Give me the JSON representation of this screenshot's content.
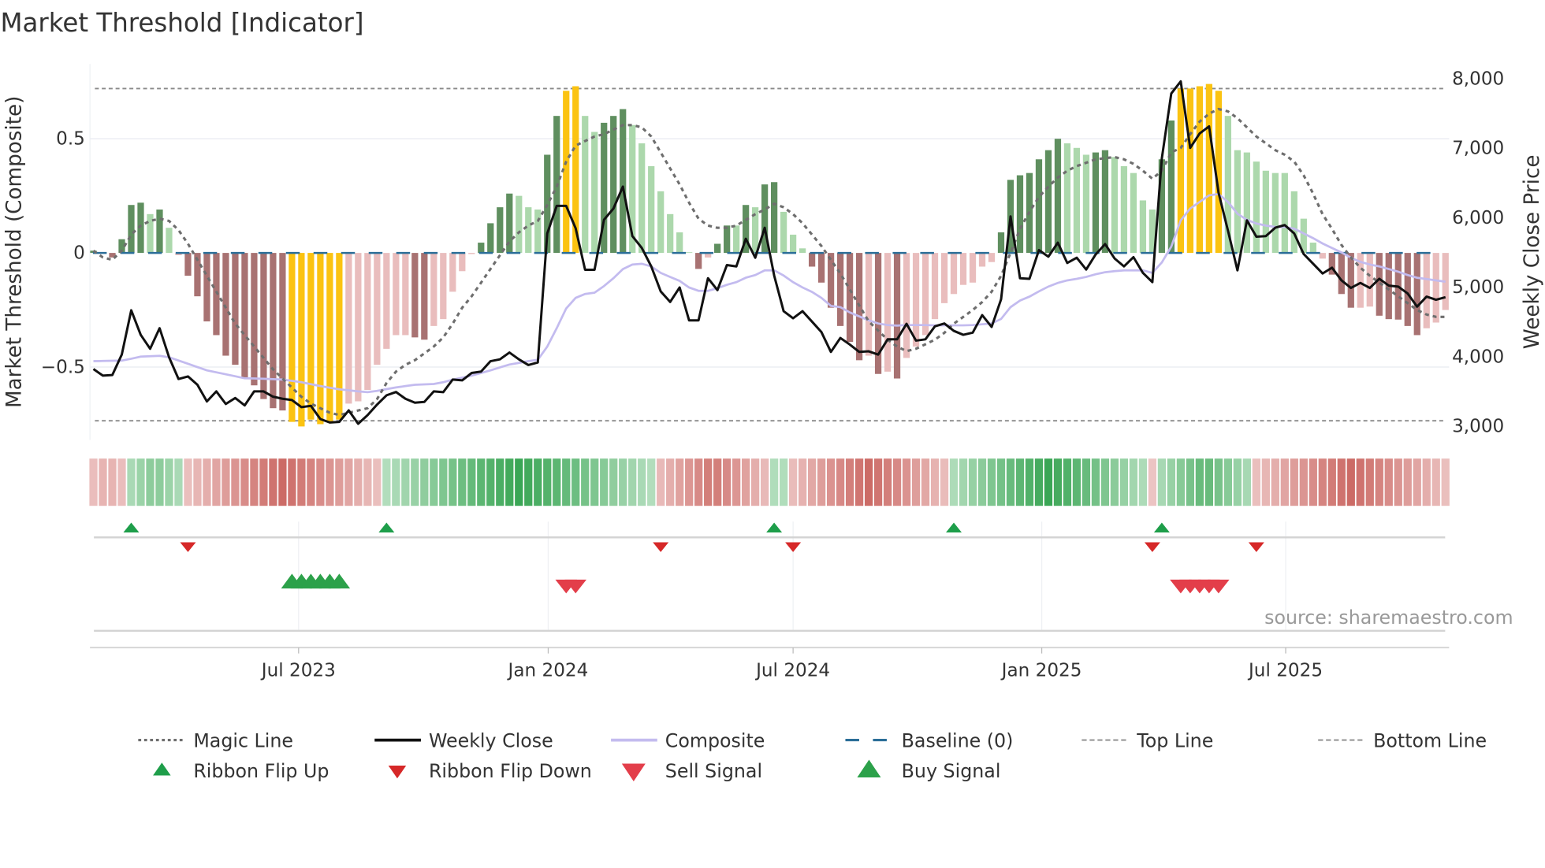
{
  "title": "Market Threshold [Indicator]",
  "source_text": "source: sharemaestro.com",
  "colors": {
    "bar_dark_green": "#5f8f5f",
    "bar_light_green": "#acd8ac",
    "bar_dark_red": "#a87272",
    "bar_light_red": "#e9bdbd",
    "bar_gold": "#fbc311",
    "close": "#111111",
    "composite": "#c3bbef",
    "magic": "#6e6e6e",
    "baseline": "#2b6e98",
    "threshold_lines": "#8a8a8a",
    "ribbon_green": "#3aa655",
    "ribbon_red": "#cc6b66",
    "flip_up": "#1e9e4a",
    "flip_down": "#d62828",
    "buy": "#2ca14a",
    "sell": "#e33e4a"
  },
  "chart_data": {
    "type": "bar",
    "title": "Market Threshold [Indicator]",
    "ylabel_left": "Market Threshold (Composite)",
    "ylabel_right": "Weekly Close Price",
    "ylim_left": [
      -0.78,
      0.78
    ],
    "ylim_right": [
      3000,
      8000
    ],
    "left_ticks": [
      {
        "value": 0.5,
        "label": "0.5"
      },
      {
        "value": 0,
        "label": "0"
      },
      {
        "value": -0.5,
        "label": "−0.5"
      }
    ],
    "right_ticks": [
      {
        "value": 8000,
        "label": "8,000"
      },
      {
        "value": 7000,
        "label": "7,000"
      },
      {
        "value": 6000,
        "label": "6,000"
      },
      {
        "value": 5000,
        "label": "5,000"
      },
      {
        "value": 4000,
        "label": "4,000"
      },
      {
        "value": 3000,
        "label": "3,000"
      }
    ],
    "x_ticks": [
      {
        "week": 21.7,
        "label": "Jul 2023"
      },
      {
        "week": 48.1,
        "label": "Jan 2024"
      },
      {
        "week": 74.0,
        "label": "Jul 2024"
      },
      {
        "week": 100.3,
        "label": "Jan 2025"
      },
      {
        "week": 126.1,
        "label": "Jul 2025"
      }
    ],
    "top_line": 0.72,
    "bottom_line": -0.735,
    "gold_threshold": 0.7,
    "threshold_bars": [
      0.01,
      0.0,
      -0.02,
      0.06,
      0.21,
      0.22,
      0.17,
      0.19,
      0.11,
      -0.01,
      -0.1,
      -0.19,
      -0.3,
      -0.36,
      -0.45,
      -0.49,
      -0.55,
      -0.58,
      -0.64,
      -0.68,
      -0.69,
      -0.74,
      -0.76,
      -0.73,
      -0.75,
      -0.74,
      -0.73,
      -0.66,
      -0.65,
      -0.6,
      -0.49,
      -0.42,
      -0.36,
      -0.36,
      -0.37,
      -0.38,
      -0.32,
      -0.29,
      -0.17,
      -0.08,
      -0.005,
      0.045,
      0.13,
      0.2,
      0.26,
      0.25,
      0.2,
      0.19,
      0.43,
      0.6,
      0.71,
      0.73,
      0.6,
      0.53,
      0.57,
      0.6,
      0.63,
      0.56,
      0.48,
      0.38,
      0.27,
      0.17,
      0.09,
      0.003,
      -0.07,
      -0.02,
      0.04,
      0.12,
      0.12,
      0.21,
      0.2,
      0.3,
      0.31,
      0.18,
      0.08,
      0.02,
      -0.06,
      -0.13,
      -0.24,
      -0.32,
      -0.39,
      -0.47,
      -0.45,
      -0.53,
      -0.52,
      -0.55,
      -0.46,
      -0.41,
      -0.36,
      -0.29,
      -0.22,
      -0.18,
      -0.14,
      -0.13,
      -0.06,
      -0.04,
      0.09,
      0.32,
      0.34,
      0.35,
      0.41,
      0.45,
      0.5,
      0.48,
      0.46,
      0.43,
      0.44,
      0.45,
      0.42,
      0.38,
      0.35,
      0.23,
      0.19,
      0.41,
      0.58,
      0.72,
      0.72,
      0.73,
      0.74,
      0.71,
      0.6,
      0.45,
      0.44,
      0.4,
      0.36,
      0.35,
      0.35,
      0.27,
      0.15,
      0.045,
      -0.025,
      -0.095,
      -0.18,
      -0.24,
      -0.24,
      -0.235,
      -0.275,
      -0.29,
      -0.292,
      -0.32,
      -0.36,
      -0.33,
      -0.305,
      -0.25
    ],
    "magic_line": [
      0.01,
      -0.02,
      -0.03,
      0.01,
      0.08,
      0.12,
      0.14,
      0.15,
      0.14,
      0.1,
      0.04,
      -0.03,
      -0.1,
      -0.17,
      -0.24,
      -0.31,
      -0.36,
      -0.41,
      -0.46,
      -0.51,
      -0.55,
      -0.59,
      -0.63,
      -0.66,
      -0.68,
      -0.7,
      -0.71,
      -0.7,
      -0.69,
      -0.68,
      -0.64,
      -0.57,
      -0.52,
      -0.49,
      -0.47,
      -0.44,
      -0.41,
      -0.37,
      -0.31,
      -0.24,
      -0.19,
      -0.13,
      -0.07,
      -0.01,
      0.05,
      0.09,
      0.12,
      0.14,
      0.21,
      0.29,
      0.4,
      0.47,
      0.49,
      0.51,
      0.52,
      0.54,
      0.56,
      0.56,
      0.55,
      0.51,
      0.44,
      0.37,
      0.3,
      0.22,
      0.15,
      0.12,
      0.11,
      0.11,
      0.12,
      0.145,
      0.17,
      0.19,
      0.215,
      0.2,
      0.17,
      0.13,
      0.08,
      0.03,
      -0.03,
      -0.09,
      -0.16,
      -0.23,
      -0.3,
      -0.34,
      -0.38,
      -0.41,
      -0.43,
      -0.42,
      -0.4,
      -0.38,
      -0.35,
      -0.31,
      -0.28,
      -0.25,
      -0.215,
      -0.17,
      -0.1,
      0.0,
      0.105,
      0.18,
      0.245,
      0.29,
      0.33,
      0.36,
      0.38,
      0.395,
      0.41,
      0.415,
      0.42,
      0.41,
      0.39,
      0.36,
      0.325,
      0.36,
      0.44,
      0.46,
      0.52,
      0.575,
      0.61,
      0.63,
      0.62,
      0.59,
      0.55,
      0.51,
      0.48,
      0.45,
      0.43,
      0.4,
      0.34,
      0.26,
      0.17,
      0.105,
      0.035,
      -0.02,
      -0.065,
      -0.1,
      -0.13,
      -0.16,
      -0.19,
      -0.22,
      -0.25,
      -0.27,
      -0.28,
      -0.28
    ],
    "weekly_close": [
      3822,
      3727,
      3735,
      4030,
      4667,
      4314,
      4114,
      4409,
      3992,
      3678,
      3716,
      3595,
      3356,
      3500,
      3318,
      3405,
      3299,
      3500,
      3500,
      3424,
      3394,
      3375,
      3273,
      3292,
      3102,
      3053,
      3061,
      3227,
      3034,
      3159,
      3310,
      3443,
      3492,
      3394,
      3337,
      3348,
      3500,
      3489,
      3670,
      3659,
      3765,
      3784,
      3935,
      3962,
      4060,
      3962,
      3879,
      3917,
      5773,
      6170,
      6170,
      5848,
      5250,
      5250,
      5970,
      6132,
      6447,
      5735,
      5564,
      5299,
      4939,
      4788,
      4996,
      4523,
      4523,
      5129,
      4958,
      5318,
      5299,
      5697,
      5424,
      5856,
      5167,
      4655,
      4553,
      4655,
      4504,
      4352,
      4068,
      4269,
      4174,
      4068,
      4076,
      4030,
      4250,
      4250,
      4473,
      4231,
      4250,
      4436,
      4477,
      4371,
      4314,
      4345,
      4598,
      4428,
      4826,
      6019,
      5129,
      5121,
      5534,
      5439,
      5640,
      5348,
      5424,
      5254,
      5470,
      5621,
      5413,
      5299,
      5432,
      5205,
      5072,
      6852,
      7788,
      7962,
      7004,
      7212,
      7314,
      6360,
      5811,
      5242,
      5962,
      5727,
      5735,
      5856,
      5894,
      5773,
      5477,
      5337,
      5197,
      5280,
      5098,
      4989,
      5061,
      4989,
      5121,
      5023,
      5008,
      4909,
      4720,
      4864,
      4818,
      4856
    ],
    "composite": [
      3935,
      3938,
      3940,
      3943,
      3970,
      4000,
      4005,
      4011,
      3992,
      3945,
      3898,
      3850,
      3803,
      3775,
      3746,
      3718,
      3689,
      3685,
      3682,
      3676,
      3670,
      3651,
      3632,
      3604,
      3576,
      3553,
      3530,
      3515,
      3500,
      3489,
      3507,
      3532,
      3557,
      3576,
      3595,
      3600,
      3606,
      3632,
      3670,
      3697,
      3727,
      3765,
      3803,
      3845,
      3886,
      3910,
      3935,
      3954,
      4144,
      4409,
      4693,
      4845,
      4902,
      4920,
      5015,
      5129,
      5261,
      5326,
      5337,
      5299,
      5205,
      5148,
      5091,
      4996,
      4947,
      4947,
      4985,
      5034,
      5072,
      5136,
      5174,
      5242,
      5242,
      5167,
      5072,
      4996,
      4932,
      4845,
      4731,
      4712,
      4636,
      4580,
      4523,
      4477,
      4455,
      4447,
      4455,
      4455,
      4455,
      4450,
      4450,
      4450,
      4450,
      4455,
      4466,
      4477,
      4542,
      4712,
      4807,
      4864,
      4939,
      5008,
      5061,
      5098,
      5121,
      5148,
      5186,
      5216,
      5231,
      5242,
      5242,
      5242,
      5205,
      5356,
      5583,
      5962,
      6132,
      6227,
      6322,
      6341,
      6227,
      6057,
      5970,
      5917,
      5886,
      5867,
      5867,
      5841,
      5773,
      5705,
      5629,
      5564,
      5500,
      5424,
      5364,
      5326,
      5299,
      5261,
      5223,
      5174,
      5136,
      5117,
      5098,
      5080
    ],
    "ribbon_segments": [
      {
        "from": 0,
        "to": 3,
        "dir": -1
      },
      {
        "from": 4,
        "to": 9,
        "dir": 1
      },
      {
        "from": 10,
        "to": 30,
        "dir": -1
      },
      {
        "from": 31,
        "to": 59,
        "dir": 1
      },
      {
        "from": 60,
        "to": 71,
        "dir": -1
      },
      {
        "from": 72,
        "to": 73,
        "dir": 1
      },
      {
        "from": 74,
        "to": 90,
        "dir": -1
      },
      {
        "from": 91,
        "to": 111,
        "dir": 1
      },
      {
        "from": 112,
        "to": 112,
        "dir": -1
      },
      {
        "from": 113,
        "to": 122,
        "dir": 1
      },
      {
        "from": 123,
        "to": 143,
        "dir": -1
      }
    ],
    "signals": {
      "ribbon_flip_up": [
        4,
        31,
        72,
        91,
        113
      ],
      "ribbon_flip_down": [
        10,
        60,
        74,
        112,
        123
      ],
      "buy": [
        21,
        22,
        23,
        24,
        25,
        26
      ],
      "sell": [
        50,
        51,
        115,
        116,
        117,
        118,
        119
      ]
    },
    "legend": {
      "magic": "Magic Line",
      "close": "Weekly Close",
      "composite": "Composite",
      "baseline": "Baseline (0)",
      "top": "Top Line",
      "bottom": "Bottom Line",
      "flip_up": "Ribbon Flip Up",
      "flip_down": "Ribbon Flip Down",
      "sell": "Sell Signal",
      "buy": "Buy Signal"
    }
  }
}
